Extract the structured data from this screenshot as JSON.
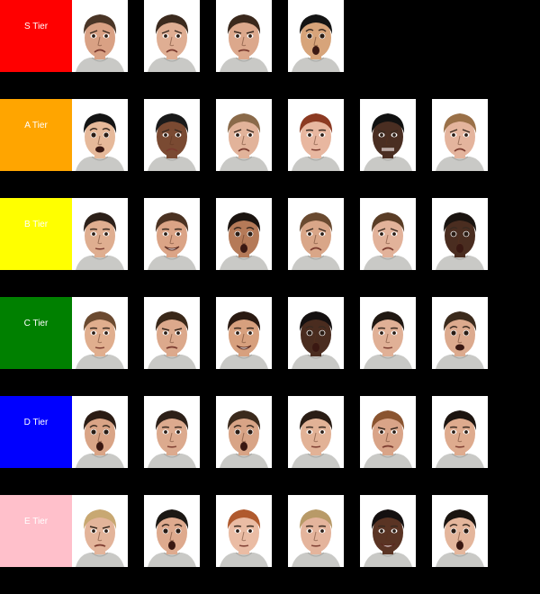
{
  "tiers": [
    {
      "label": "S Tier",
      "color": "#ff0000",
      "faces": [
        {
          "icon": "face-photo",
          "skin": "#d9a184",
          "hair": "#4a3526",
          "expr": "sad"
        },
        {
          "icon": "face-photo",
          "skin": "#dfae93",
          "hair": "#3b2a1e",
          "expr": "sad"
        },
        {
          "icon": "face-photo",
          "skin": "#dca88c",
          "hair": "#3a281c",
          "expr": "frown"
        },
        {
          "icon": "face-photo",
          "skin": "#d7a47a",
          "hair": "#141414",
          "expr": "surprise"
        }
      ]
    },
    {
      "label": "A Tier",
      "color": "#ffa500",
      "faces": [
        {
          "icon": "face-photo",
          "skin": "#e6b99a",
          "hair": "#141414",
          "expr": "fear"
        },
        {
          "icon": "face-photo",
          "skin": "#7a4a32",
          "hair": "#1a1a1a",
          "expr": "sad"
        },
        {
          "icon": "face-photo",
          "skin": "#e2b39a",
          "hair": "#8a6a4a",
          "expr": "sad"
        },
        {
          "icon": "face-photo",
          "skin": "#e8b7a0",
          "hair": "#8c3a22",
          "expr": "neutral"
        },
        {
          "icon": "face-photo",
          "skin": "#4a2e22",
          "hair": "#111111",
          "expr": "disgust"
        },
        {
          "icon": "face-photo",
          "skin": "#e4b49d",
          "hair": "#9a7048",
          "expr": "sad"
        }
      ]
    },
    {
      "label": "B Tier",
      "color": "#ffff00",
      "faces": [
        {
          "icon": "face-photo",
          "skin": "#dfae90",
          "hair": "#2c2019",
          "expr": "neutral"
        },
        {
          "icon": "face-photo",
          "skin": "#dba486",
          "hair": "#4b3222",
          "expr": "happy"
        },
        {
          "icon": "face-photo",
          "skin": "#b57a58",
          "hair": "#1b1410",
          "expr": "surprise"
        },
        {
          "icon": "face-photo",
          "skin": "#d9a688",
          "hair": "#6a4a30",
          "expr": "sad"
        },
        {
          "icon": "face-photo",
          "skin": "#e2b29a",
          "hair": "#5a3d26",
          "expr": "sad"
        },
        {
          "icon": "face-photo",
          "skin": "#4a2d20",
          "hair": "#1a1410",
          "expr": "surprise"
        }
      ]
    },
    {
      "label": "C Tier",
      "color": "#008000",
      "faces": [
        {
          "icon": "face-photo",
          "skin": "#e0ae8e",
          "hair": "#6b4a30",
          "expr": "neutral"
        },
        {
          "icon": "face-photo",
          "skin": "#dca98c",
          "hair": "#3a2819",
          "expr": "frown"
        },
        {
          "icon": "face-photo",
          "skin": "#d7a07e",
          "hair": "#2a1a12",
          "expr": "happy"
        },
        {
          "icon": "face-photo",
          "skin": "#4a2c1f",
          "hair": "#141010",
          "expr": "surprise"
        },
        {
          "icon": "face-photo",
          "skin": "#e0b096",
          "hair": "#201812",
          "expr": "neutral"
        },
        {
          "icon": "face-photo",
          "skin": "#dcaa8e",
          "hair": "#3b2a1c",
          "expr": "fear"
        }
      ]
    },
    {
      "label": "D Tier",
      "color": "#0000ff",
      "faces": [
        {
          "icon": "face-photo",
          "skin": "#d9a486",
          "hair": "#2b1c14",
          "expr": "surprise"
        },
        {
          "icon": "face-photo",
          "skin": "#dcaa8e",
          "hair": "#2d2018",
          "expr": "neutral"
        },
        {
          "icon": "face-photo",
          "skin": "#d8a486",
          "hair": "#3b2a1c",
          "expr": "surprise"
        },
        {
          "icon": "face-photo",
          "skin": "#e2b296",
          "hair": "#2a1d15",
          "expr": "neutral"
        },
        {
          "icon": "face-photo",
          "skin": "#d9a488",
          "hair": "#8a5430",
          "expr": "frown"
        },
        {
          "icon": "face-photo",
          "skin": "#deab8e",
          "hair": "#1c1410",
          "expr": "neutral"
        }
      ]
    },
    {
      "label": "E Tier",
      "color": "#ffc0cb",
      "faces": [
        {
          "icon": "face-photo",
          "skin": "#e3b49a",
          "hair": "#c8a872",
          "expr": "frown"
        },
        {
          "icon": "face-photo",
          "skin": "#deaa8e",
          "hair": "#1c1814",
          "expr": "surprise"
        },
        {
          "icon": "face-photo",
          "skin": "#eabca4",
          "hair": "#b05a2e",
          "expr": "neutral"
        },
        {
          "icon": "face-photo",
          "skin": "#e4b49c",
          "hair": "#b89a68",
          "expr": "neutral"
        },
        {
          "icon": "face-photo",
          "skin": "#5a3424",
          "hair": "#141010",
          "expr": "happy"
        },
        {
          "icon": "face-photo",
          "skin": "#e4b69c",
          "hair": "#1a1410",
          "expr": "surprise"
        }
      ]
    }
  ]
}
